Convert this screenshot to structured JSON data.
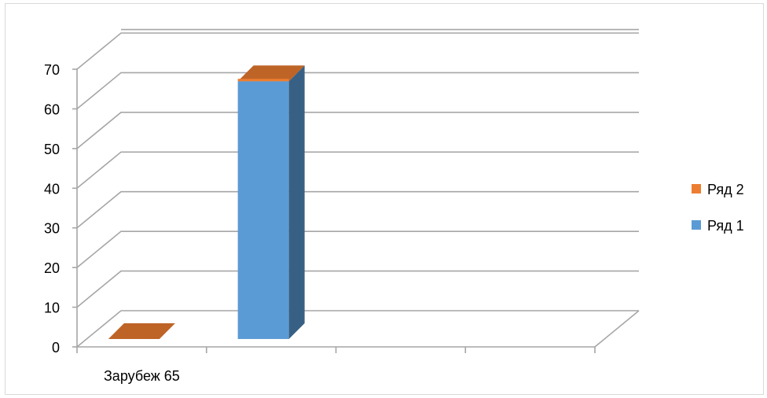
{
  "chart_data": {
    "type": "bar",
    "categories": [
      "Зарубеж 65",
      "",
      "",
      ""
    ],
    "series": [
      {
        "name": "Ряд 1",
        "color": "#5b9bd5",
        "values": [
          0,
          65,
          0,
          0
        ]
      },
      {
        "name": "Ряд 2",
        "color": "#ed7d31",
        "values": [
          0,
          0,
          0,
          0
        ]
      }
    ],
    "yticks": [
      "0",
      "10",
      "20",
      "30",
      "40",
      "50",
      "60",
      "70"
    ],
    "ylim": [
      0,
      70
    ],
    "grid": true,
    "legend_position": "right",
    "view": "3d"
  }
}
